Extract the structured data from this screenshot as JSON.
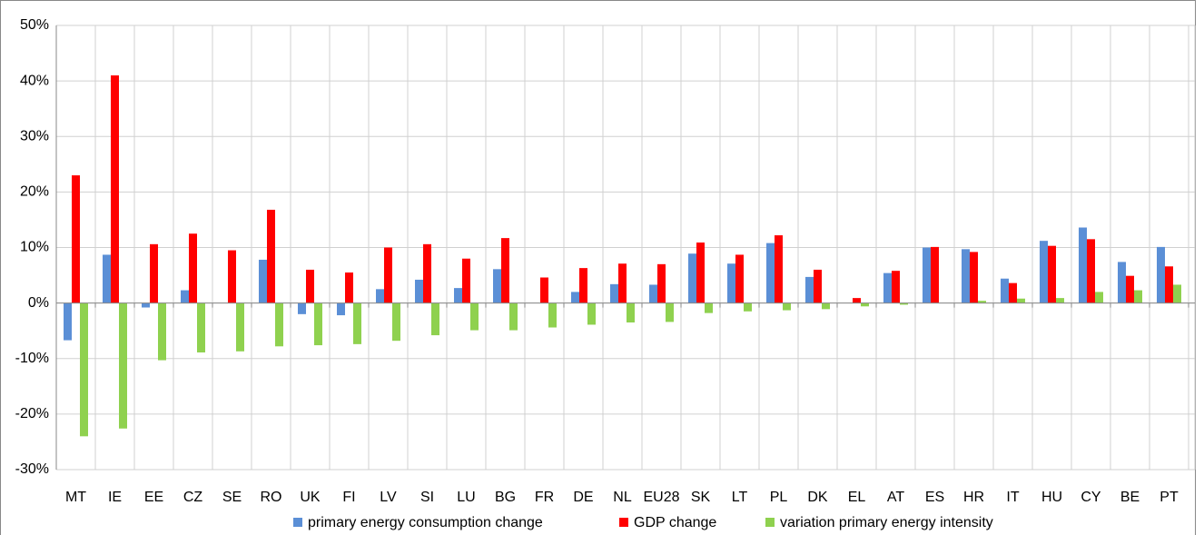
{
  "chart_data": {
    "type": "bar",
    "categories": [
      "MT",
      "IE",
      "EE",
      "CZ",
      "SE",
      "RO",
      "UK",
      "FI",
      "LV",
      "SI",
      "LU",
      "BG",
      "FR",
      "DE",
      "NL",
      "EU28",
      "SK",
      "LT",
      "PL",
      "DK",
      "EL",
      "AT",
      "ES",
      "HR",
      "IT",
      "HU",
      "CY",
      "BE",
      "PT"
    ],
    "series": [
      {
        "name": "primary energy consumption change",
        "color": "#5b8fd6",
        "values": [
          -6.7,
          8.7,
          -0.8,
          2.3,
          0,
          7.8,
          -2,
          -2.2,
          2.5,
          4.2,
          2.7,
          6.1,
          0,
          2,
          3.4,
          3.3,
          8.9,
          7.1,
          10.8,
          4.7,
          0,
          5.4,
          10,
          9.7,
          4.4,
          11.2,
          13.6,
          7.4,
          10.1
        ]
      },
      {
        "name": "GDP change",
        "color": "#ff0000",
        "values": [
          23,
          41,
          10.6,
          12.5,
          9.5,
          16.8,
          6,
          5.5,
          10,
          10.6,
          8,
          11.7,
          4.6,
          6.3,
          7.1,
          7,
          10.9,
          8.7,
          12.2,
          6,
          0.9,
          5.8,
          10.1,
          9.2,
          3.6,
          10.3,
          11.5,
          4.9,
          6.6
        ]
      },
      {
        "name": "variation primary energy intensity",
        "color": "#8fd14f",
        "values": [
          -24,
          -22.6,
          -10.3,
          -8.9,
          -8.7,
          -7.8,
          -7.6,
          -7.4,
          -6.8,
          -5.8,
          -4.9,
          -4.9,
          -4.4,
          -3.9,
          -3.5,
          -3.4,
          -1.8,
          -1.5,
          -1.3,
          -1.1,
          -0.6,
          -0.3,
          0,
          0.4,
          0.8,
          0.9,
          2,
          2.3,
          3.3
        ]
      }
    ],
    "ylim": [
      -30,
      50
    ],
    "yticks": [
      {
        "value": -30,
        "label": "-30%"
      },
      {
        "value": -20,
        "label": "-20%"
      },
      {
        "value": -10,
        "label": "-10%"
      },
      {
        "value": 0,
        "label": "0%"
      },
      {
        "value": 10,
        "label": "10%"
      },
      {
        "value": 20,
        "label": "20%"
      },
      {
        "value": 30,
        "label": "30%"
      },
      {
        "value": 40,
        "label": "40%"
      },
      {
        "value": 50,
        "label": "50%"
      }
    ],
    "grid": true,
    "legend": "bottom"
  }
}
